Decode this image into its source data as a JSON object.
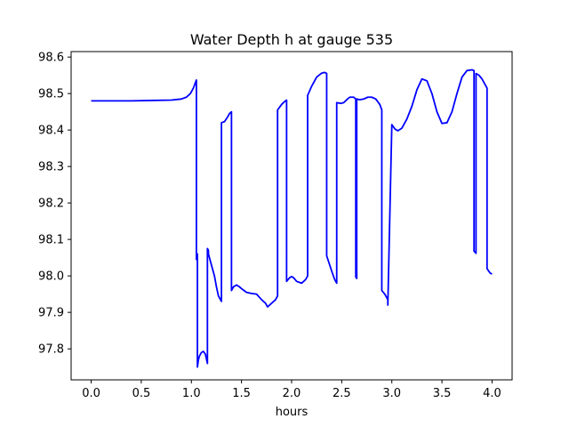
{
  "chart_data": {
    "type": "line",
    "title": "Water Depth h at gauge 535",
    "xlabel": "hours",
    "ylabel": "",
    "xlim": [
      -0.2,
      4.2
    ],
    "ylim": [
      97.715,
      98.615
    ],
    "xticks": [
      0.0,
      0.5,
      1.0,
      1.5,
      2.0,
      2.5,
      3.0,
      3.5,
      4.0
    ],
    "xtick_labels": [
      "0.0",
      "0.5",
      "1.0",
      "1.5",
      "2.0",
      "2.5",
      "3.0",
      "3.5",
      "4.0"
    ],
    "yticks": [
      97.8,
      97.9,
      98.0,
      98.1,
      98.2,
      98.3,
      98.4,
      98.5,
      98.6
    ],
    "ytick_labels": [
      "97.8",
      "97.9",
      "98.0",
      "98.1",
      "98.2",
      "98.3",
      "98.4",
      "98.5",
      "98.6"
    ],
    "grid": false,
    "series": [
      {
        "color": "#0000ff",
        "x": [
          0.0,
          0.2,
          0.4,
          0.6,
          0.8,
          0.9,
          0.95,
          0.99,
          1.02,
          1.04,
          1.05,
          1.05,
          1.055,
          1.06,
          1.06,
          1.07,
          1.08,
          1.1,
          1.12,
          1.14,
          1.16,
          1.16,
          1.17,
          1.17,
          1.2,
          1.23,
          1.25,
          1.27,
          1.29,
          1.3,
          1.3,
          1.33,
          1.36,
          1.38,
          1.4,
          1.4,
          1.42,
          1.45,
          1.48,
          1.5,
          1.55,
          1.6,
          1.65,
          1.7,
          1.74,
          1.76,
          1.8,
          1.84,
          1.86,
          1.86,
          1.9,
          1.93,
          1.95,
          1.95,
          1.98,
          2.0,
          2.02,
          2.05,
          2.08,
          2.1,
          2.12,
          2.14,
          2.16,
          2.16,
          2.2,
          2.25,
          2.3,
          2.33,
          2.35,
          2.35,
          2.38,
          2.41,
          2.43,
          2.45,
          2.45,
          2.49,
          2.52,
          2.55,
          2.58,
          2.62,
          2.64,
          2.64,
          2.65,
          2.65,
          2.68,
          2.72,
          2.76,
          2.8,
          2.84,
          2.88,
          2.9,
          2.9,
          2.93,
          2.96,
          2.96,
          3.0,
          3.03,
          3.06,
          3.1,
          3.15,
          3.2,
          3.25,
          3.3,
          3.35,
          3.4,
          3.45,
          3.5,
          3.55,
          3.6,
          3.65,
          3.7,
          3.75,
          3.8,
          3.82,
          3.82,
          3.83,
          3.83,
          3.84,
          3.84,
          3.87,
          3.9,
          3.93,
          3.95,
          3.95,
          3.98,
          4.0
        ],
        "y": [
          98.48,
          98.48,
          98.48,
          98.481,
          98.482,
          98.485,
          98.49,
          98.5,
          98.515,
          98.53,
          98.537,
          98.045,
          98.05,
          98.06,
          97.75,
          97.77,
          97.78,
          97.79,
          97.793,
          97.785,
          97.76,
          98.075,
          98.07,
          98.06,
          98.03,
          98.0,
          97.97,
          97.945,
          97.935,
          97.93,
          98.42,
          98.423,
          98.435,
          98.445,
          98.45,
          97.96,
          97.97,
          97.975,
          97.97,
          97.965,
          97.955,
          97.952,
          97.95,
          97.935,
          97.925,
          97.915,
          97.925,
          97.935,
          97.945,
          98.455,
          98.47,
          98.478,
          98.482,
          97.985,
          97.995,
          97.998,
          97.995,
          97.985,
          97.982,
          97.98,
          97.985,
          97.99,
          98.0,
          98.495,
          98.52,
          98.545,
          98.556,
          98.558,
          98.555,
          98.055,
          98.03,
          98.005,
          97.99,
          97.98,
          98.475,
          98.473,
          98.475,
          98.483,
          98.49,
          98.49,
          98.485,
          97.997,
          97.993,
          98.485,
          98.483,
          98.485,
          98.49,
          98.49,
          98.485,
          98.47,
          98.455,
          97.96,
          97.95,
          97.935,
          97.92,
          98.415,
          98.403,
          98.398,
          98.405,
          98.43,
          98.465,
          98.51,
          98.54,
          98.535,
          98.5,
          98.45,
          98.418,
          98.42,
          98.45,
          98.5,
          98.545,
          98.563,
          98.565,
          98.563,
          98.068,
          98.065,
          98.065,
          98.062,
          98.555,
          98.55,
          98.54,
          98.525,
          98.515,
          98.02,
          98.008,
          98.005
        ]
      }
    ]
  }
}
